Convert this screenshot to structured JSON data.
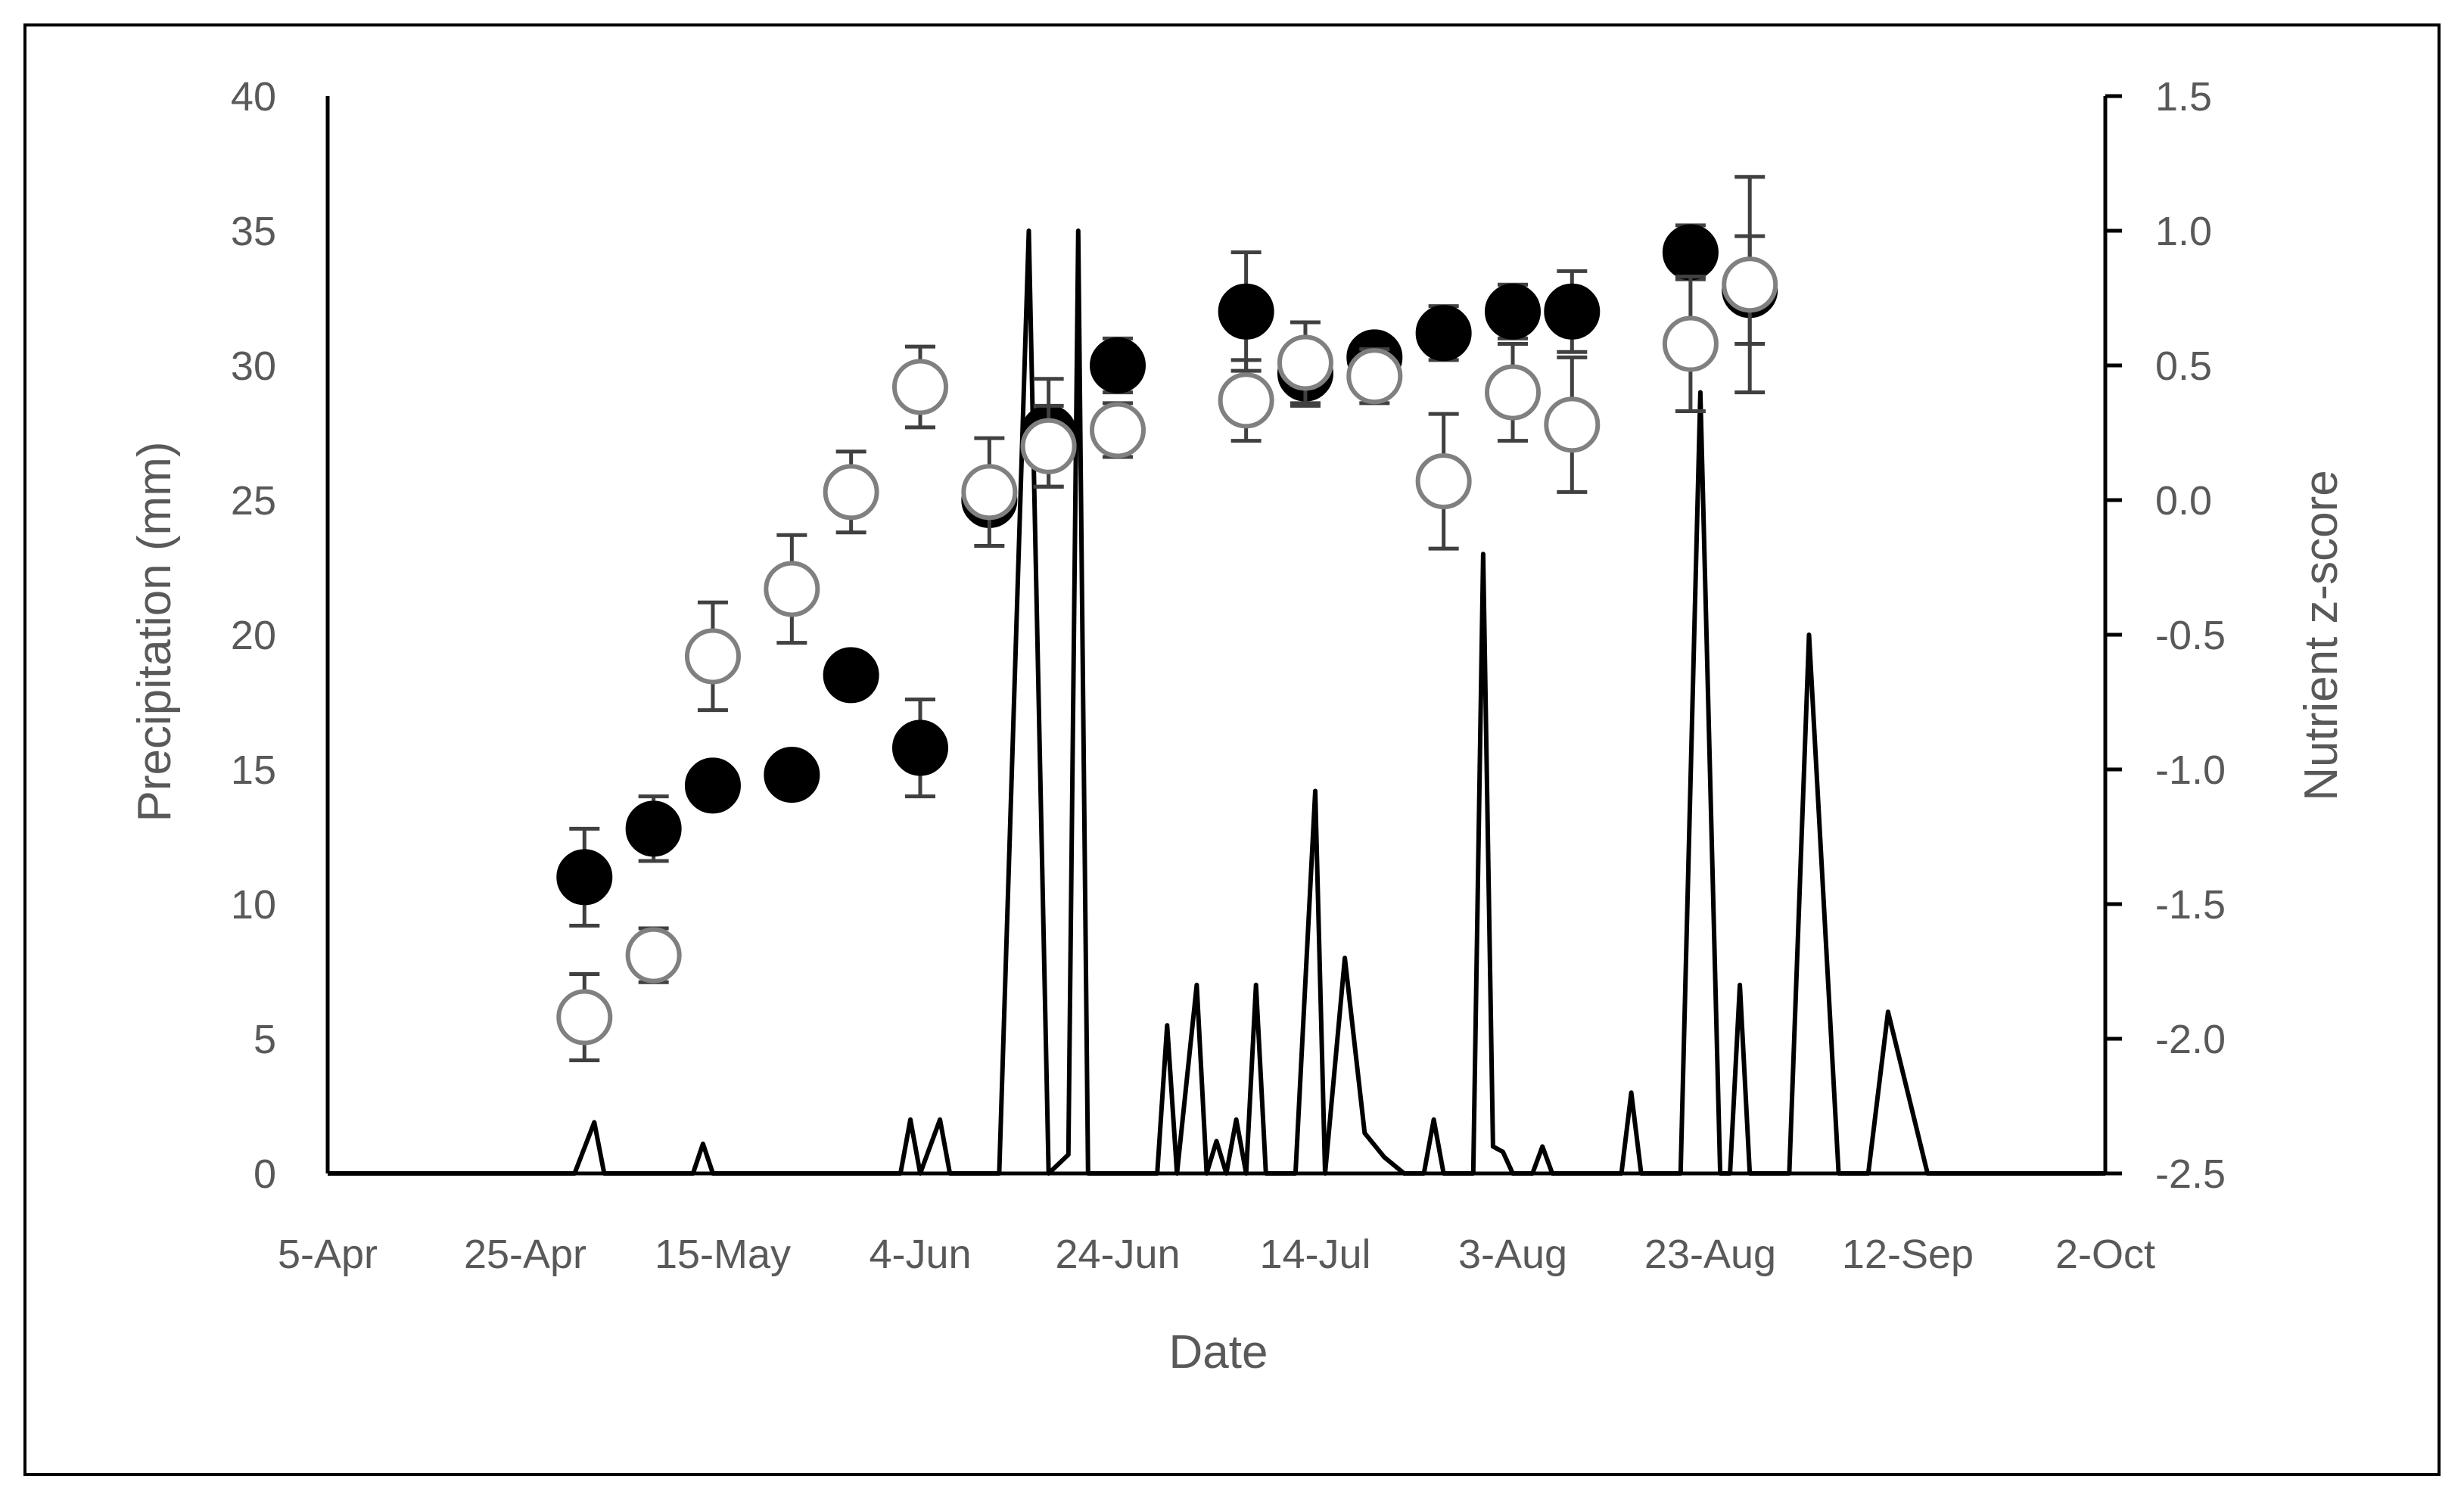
{
  "chart_data": {
    "type": "line+scatter",
    "xlabel": "Date",
    "ylabel_left": "Precipitation (mm)",
    "ylabel_right": "Nutrient z-score",
    "x_ticks": [
      "5-Apr",
      "25-Apr",
      "15-May",
      "4-Jun",
      "24-Jun",
      "14-Jul",
      "3-Aug",
      "23-Aug",
      "12-Sep",
      "2-Oct"
    ],
    "y_left_ticks": [
      "0",
      "5",
      "10",
      "15",
      "20",
      "25",
      "30",
      "35",
      "40"
    ],
    "y_right_ticks": [
      "-2.5",
      "-2.0",
      "-1.5",
      "-1.0",
      "-0.5",
      "0.0",
      "0.5",
      "1.0",
      "1.5"
    ],
    "x_range": [
      "2019-04-05",
      "2019-10-02"
    ],
    "y_left_range": [
      0,
      40
    ],
    "y_right_range": [
      -2.5,
      1.5
    ],
    "grid": false,
    "legend": "none",
    "colors": {
      "precip_line": "#000000",
      "filled_marker": "#000000",
      "open_marker_stroke": "#808080",
      "open_marker_fill": "#ffffff",
      "error_bar": "#404040",
      "axis": "#000000",
      "text": "#595959"
    },
    "series": [
      {
        "type": "line",
        "axis": "left",
        "points": [
          [
            "2019-04-05",
            0
          ],
          [
            "2019-04-30",
            0
          ],
          [
            "2019-05-02",
            1.9
          ],
          [
            "2019-05-03",
            0
          ],
          [
            "2019-05-12",
            0
          ],
          [
            "2019-05-13",
            1.1
          ],
          [
            "2019-05-14",
            0
          ],
          [
            "2019-06-02",
            0
          ],
          [
            "2019-06-03",
            2.0
          ],
          [
            "2019-06-04",
            0
          ],
          [
            "2019-06-06",
            2.0
          ],
          [
            "2019-06-07",
            0
          ],
          [
            "2019-06-12",
            0
          ],
          [
            "2019-06-15",
            35
          ],
          [
            "2019-06-17",
            0
          ],
          [
            "2019-06-19",
            0.7
          ],
          [
            "2019-06-20",
            35
          ],
          [
            "2019-06-21",
            0
          ],
          [
            "2019-06-28",
            0
          ],
          [
            "2019-06-29",
            5.5
          ],
          [
            "2019-06-30",
            0
          ],
          [
            "2019-07-02",
            7
          ],
          [
            "2019-07-03",
            0
          ],
          [
            "2019-07-04",
            1.2
          ],
          [
            "2019-07-05",
            0
          ],
          [
            "2019-07-06",
            2.0
          ],
          [
            "2019-07-07",
            0
          ],
          [
            "2019-07-08",
            7
          ],
          [
            "2019-07-09",
            0
          ],
          [
            "2019-07-12",
            0
          ],
          [
            "2019-07-14",
            14.2
          ],
          [
            "2019-07-15",
            0
          ],
          [
            "2019-07-17",
            8
          ],
          [
            "2019-07-19",
            1.5
          ],
          [
            "2019-07-21",
            0.6
          ],
          [
            "2019-07-23",
            0
          ],
          [
            "2019-07-25",
            0
          ],
          [
            "2019-07-26",
            2.0
          ],
          [
            "2019-07-27",
            0
          ],
          [
            "2019-07-30",
            0
          ],
          [
            "2019-07-31",
            23
          ],
          [
            "2019-08-01",
            1.0
          ],
          [
            "2019-08-02",
            0.8
          ],
          [
            "2019-08-03",
            0
          ],
          [
            "2019-08-05",
            0
          ],
          [
            "2019-08-06",
            1.0
          ],
          [
            "2019-08-07",
            0
          ],
          [
            "2019-08-14",
            0
          ],
          [
            "2019-08-15",
            3.0
          ],
          [
            "2019-08-16",
            0
          ],
          [
            "2019-08-20",
            0
          ],
          [
            "2019-08-22",
            29
          ],
          [
            "2019-08-24",
            0
          ],
          [
            "2019-08-25",
            0
          ],
          [
            "2019-08-26",
            7
          ],
          [
            "2019-08-27",
            0
          ],
          [
            "2019-08-31",
            0
          ],
          [
            "2019-09-02",
            20
          ],
          [
            "2019-09-05",
            0
          ],
          [
            "2019-09-08",
            0
          ],
          [
            "2019-09-10",
            6
          ],
          [
            "2019-09-14",
            0
          ],
          [
            "2019-10-02",
            0
          ]
        ]
      },
      {
        "type": "scatter",
        "axis": "right",
        "marker": "filled",
        "points": [
          {
            "x": "2019-05-01",
            "y": -1.4,
            "err": 0.18
          },
          {
            "x": "2019-05-08",
            "y": -1.22,
            "err": 0.12
          },
          {
            "x": "2019-05-14",
            "y": -1.06,
            "err": 0.05
          },
          {
            "x": "2019-05-22",
            "y": -1.02,
            "err": 0.06
          },
          {
            "x": "2019-05-28",
            "y": -0.65,
            "err": 0.08
          },
          {
            "x": "2019-06-04",
            "y": -0.92,
            "err": 0.18
          },
          {
            "x": "2019-06-11",
            "y": 0.0,
            "err": 0.05
          },
          {
            "x": "2019-06-17",
            "y": 0.25,
            "err": 0.2
          },
          {
            "x": "2019-06-24",
            "y": 0.5,
            "err": 0.1
          },
          {
            "x": "2019-07-07",
            "y": 0.7,
            "err": 0.22
          },
          {
            "x": "2019-07-13",
            "y": 0.47,
            "err": 0.12
          },
          {
            "x": "2019-07-20",
            "y": 0.53,
            "err": 0.05
          },
          {
            "x": "2019-07-27",
            "y": 0.62,
            "err": 0.1
          },
          {
            "x": "2019-08-03",
            "y": 0.7,
            "err": 0.1
          },
          {
            "x": "2019-08-09",
            "y": 0.7,
            "err": 0.15
          },
          {
            "x": "2019-08-21",
            "y": 0.92,
            "err": 0.1
          },
          {
            "x": "2019-08-27",
            "y": 0.78,
            "err": 0.2
          }
        ]
      },
      {
        "type": "scatter",
        "axis": "right",
        "marker": "open",
        "points": [
          {
            "x": "2019-05-01",
            "y": -1.92,
            "err": 0.16
          },
          {
            "x": "2019-05-08",
            "y": -1.69,
            "err": 0.1
          },
          {
            "x": "2019-05-14",
            "y": -0.58,
            "err": 0.2
          },
          {
            "x": "2019-05-22",
            "y": -0.33,
            "err": 0.2
          },
          {
            "x": "2019-05-28",
            "y": 0.03,
            "err": 0.15
          },
          {
            "x": "2019-06-04",
            "y": 0.42,
            "err": 0.15
          },
          {
            "x": "2019-06-11",
            "y": 0.03,
            "err": 0.2
          },
          {
            "x": "2019-06-17",
            "y": 0.2,
            "err": 0.15
          },
          {
            "x": "2019-06-24",
            "y": 0.26,
            "err": 0.1
          },
          {
            "x": "2019-07-07",
            "y": 0.37,
            "err": 0.15
          },
          {
            "x": "2019-07-13",
            "y": 0.51,
            "err": 0.15
          },
          {
            "x": "2019-07-20",
            "y": 0.46,
            "err": 0.1
          },
          {
            "x": "2019-07-27",
            "y": 0.07,
            "err": 0.25
          },
          {
            "x": "2019-08-03",
            "y": 0.4,
            "err": 0.18
          },
          {
            "x": "2019-08-09",
            "y": 0.28,
            "err": 0.25
          },
          {
            "x": "2019-08-21",
            "y": 0.58,
            "err": 0.25
          },
          {
            "x": "2019-08-27",
            "y": 0.8,
            "err": 0.4
          }
        ]
      }
    ]
  }
}
